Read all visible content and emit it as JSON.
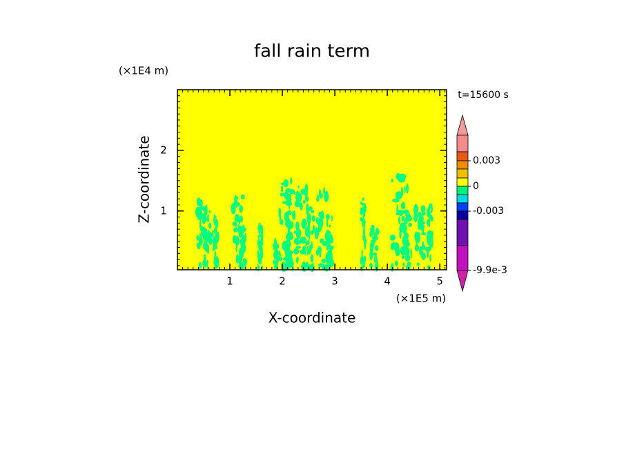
{
  "chart_data": {
    "type": "contour",
    "title": "fall rain term",
    "x_label": "X-coordinate",
    "y_label": "Z-coordinate",
    "x_unit": "(×1E5 m)",
    "y_unit": "(×1E4 m)",
    "time_label": "t=15600 s",
    "xlim": [
      0,
      5.13
    ],
    "ylim": [
      0.03,
      3.0
    ],
    "xticks": [
      1,
      2,
      3,
      4,
      5
    ],
    "yticks": [
      1,
      2
    ],
    "background_color": "#ffff00",
    "feature_color": "#00ff80",
    "colorbar_colors": [
      "#f49a9a",
      "#f48a8a",
      "#e85a10",
      "#f08c00",
      "#f0c000",
      "#ffff00",
      "#00f07a",
      "#00d8e0",
      "#0040ff",
      "#0000a0",
      "#7010b0",
      "#c010c0",
      "#d020a8"
    ],
    "colorbar_ticks": [
      {
        "value": 0.003,
        "label": "0.003"
      },
      {
        "value": 0,
        "label": "0"
      },
      {
        "value": -0.003,
        "label": "-0.003"
      },
      {
        "value": -0.0099,
        "label": "-9.9e-3"
      }
    ]
  }
}
